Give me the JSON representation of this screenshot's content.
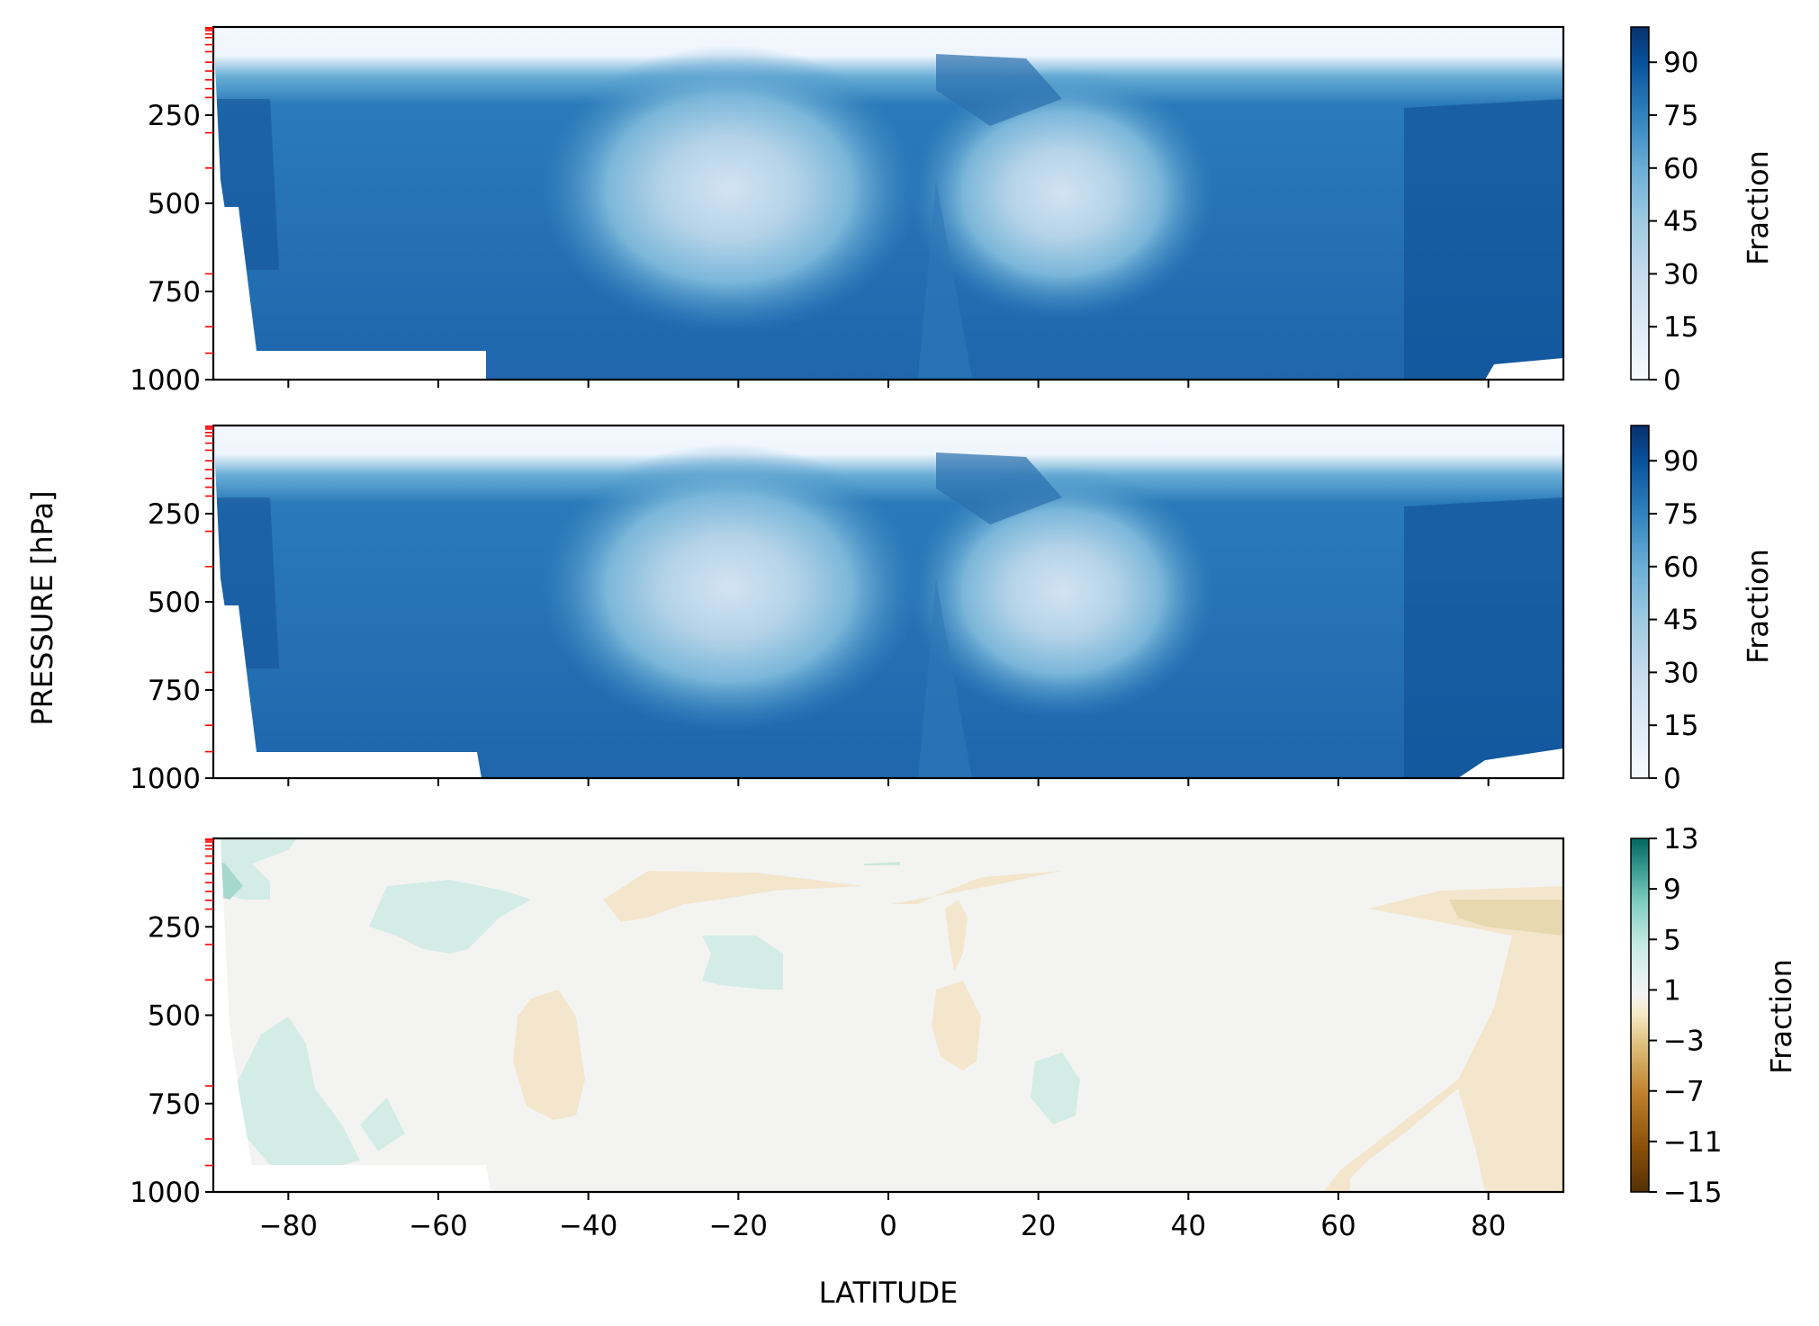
{
  "chart_data": [
    {
      "type": "heatmap",
      "title": "",
      "xlabel": "",
      "ylabel": "PRESSURE [hPa]",
      "xlim": [
        -90,
        90
      ],
      "ylim": [
        1000,
        0
      ],
      "x_ticks": [
        -80,
        -60,
        -40,
        -20,
        0,
        20,
        40,
        60,
        80
      ],
      "y_ticks": [
        "250",
        "500",
        "750",
        "1000"
      ],
      "colorbar": {
        "label": "Fraction",
        "range": [
          0,
          100
        ],
        "ticks": [
          "0",
          "15",
          "30",
          "45",
          "60",
          "75",
          "90"
        ],
        "colormap": "Blues"
      }
    },
    {
      "type": "heatmap",
      "title": "",
      "xlabel": "",
      "ylabel": "PRESSURE [hPa]",
      "xlim": [
        -90,
        90
      ],
      "ylim": [
        1000,
        0
      ],
      "x_ticks": [
        -80,
        -60,
        -40,
        -20,
        0,
        20,
        40,
        60,
        80
      ],
      "y_ticks": [
        "250",
        "500",
        "750",
        "1000"
      ],
      "colorbar": {
        "label": "Fraction",
        "range": [
          0,
          100
        ],
        "ticks": [
          "0",
          "15",
          "30",
          "45",
          "60",
          "75",
          "90"
        ],
        "colormap": "Blues"
      }
    },
    {
      "type": "heatmap",
      "title": "",
      "xlabel": "LATITUDE",
      "ylabel": "PRESSURE [hPa]",
      "xlim": [
        -90,
        90
      ],
      "ylim": [
        1000,
        0
      ],
      "x_ticks": [
        -80,
        -60,
        -40,
        -20,
        0,
        20,
        40,
        60,
        80
      ],
      "x_tick_labels": [
        "−80",
        "−60",
        "−40",
        "−20",
        "0",
        "20",
        "40",
        "60",
        "80"
      ],
      "y_ticks": [
        "250",
        "500",
        "750",
        "1000"
      ],
      "colorbar": {
        "label": "Fraction",
        "range": [
          -15,
          13
        ],
        "ticks": [
          "13",
          "9",
          "5",
          "1",
          "−3",
          "−7",
          "−11",
          "−15"
        ],
        "colormap": "BrBG"
      }
    }
  ],
  "labels": {
    "ylabel": "PRESSURE [hPa]",
    "xlabel": "LATITUDE",
    "cb_label": "Fraction"
  }
}
